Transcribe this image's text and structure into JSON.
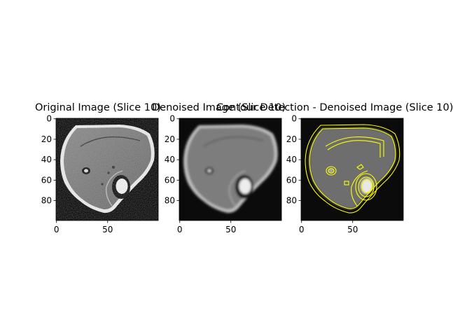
{
  "panels": [
    {
      "title": "Original Image (Slice 10)",
      "xticks": [
        "0",
        "50"
      ],
      "yticks": [
        "0",
        "20",
        "40",
        "60",
        "80"
      ]
    },
    {
      "title": "Denoised Image (Slice 10)",
      "xticks": [
        "0",
        "50"
      ],
      "yticks": [
        "0",
        "20",
        "40",
        "60",
        "80"
      ]
    },
    {
      "title": "Contour Detection - Denoised Image (Slice 10)",
      "xticks": [
        "0",
        "50"
      ],
      "yticks": [
        "0",
        "20",
        "40",
        "60",
        "80"
      ]
    }
  ],
  "colors": {
    "background": "#ffffff",
    "image_background": "#0a0a0a",
    "tissue": "#7a7a7a",
    "contour": "#ffff00"
  }
}
